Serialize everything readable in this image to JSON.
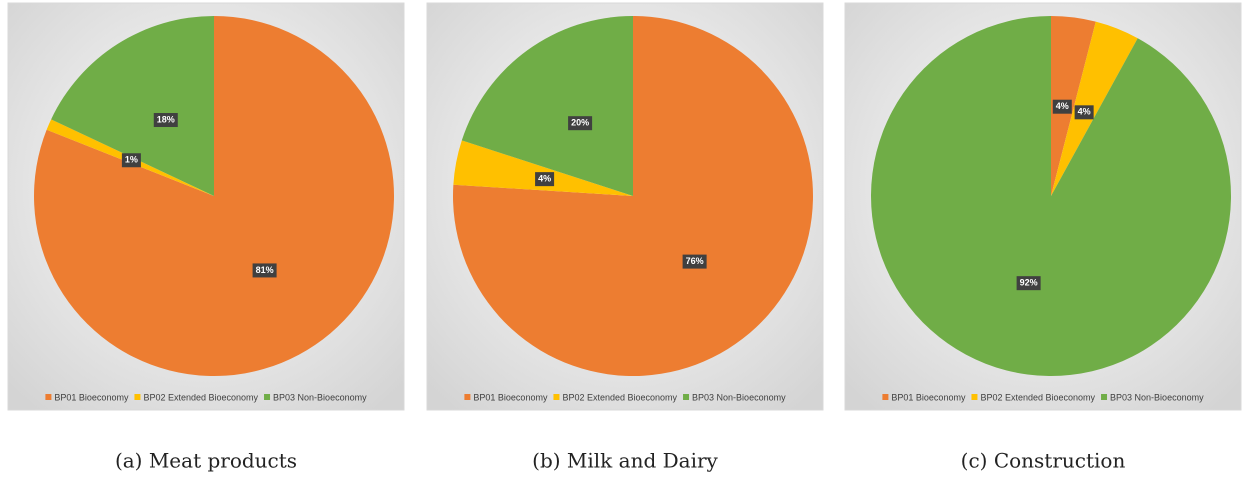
{
  "chart_data": [
    {
      "type": "pie",
      "caption": "(a) Meat products",
      "categories": [
        "BP01 Bioeconomy",
        "BP02 Extended Bioeconomy",
        "BP03 Non-Bioeconomy"
      ],
      "values": [
        81,
        1,
        18
      ],
      "value_labels": [
        "81%",
        "1%",
        "18%"
      ],
      "colors": [
        "#ED7D31",
        "#FFC000",
        "#70AD47"
      ],
      "legend": "bottom"
    },
    {
      "type": "pie",
      "caption": "(b) Milk and Dairy",
      "categories": [
        "BP01 Bioeconomy",
        "BP02 Extended Bioeconomy",
        "BP03 Non-Bioeconomy"
      ],
      "values": [
        76,
        4,
        20
      ],
      "value_labels": [
        "76%",
        "4%",
        "20%"
      ],
      "colors": [
        "#ED7D31",
        "#FFC000",
        "#70AD47"
      ],
      "legend": "bottom"
    },
    {
      "type": "pie",
      "caption": "(c) Construction",
      "categories": [
        "BP01 Bioeconomy",
        "BP02 Extended Bioeconomy",
        "BP03 Non-Bioeconomy"
      ],
      "values": [
        4,
        4,
        92
      ],
      "value_labels": [
        "4%",
        "4%",
        "92%"
      ],
      "colors": [
        "#ED7D31",
        "#FFC000",
        "#70AD47"
      ],
      "legend": "bottom"
    }
  ]
}
